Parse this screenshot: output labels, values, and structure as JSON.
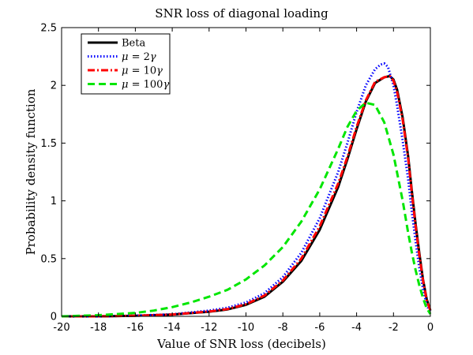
{
  "chart_data": {
    "type": "line",
    "title": "SNR loss of diagonal loading",
    "xlabel": "Value of SNR loss (decibels)",
    "ylabel": "Probability density function",
    "xlim": [
      -20,
      0
    ],
    "ylim": [
      0,
      2.5
    ],
    "xticks": [
      -20,
      -18,
      -16,
      -14,
      -12,
      -10,
      -8,
      -6,
      -4,
      -2,
      0
    ],
    "yticks": [
      0,
      0.5,
      1,
      1.5,
      2,
      2.5
    ],
    "xtick_labels": [
      "-20",
      "-18",
      "-16",
      "-14",
      "-12",
      "-10",
      "-8",
      "-6",
      "-4",
      "-2",
      "0"
    ],
    "ytick_labels": [
      "0",
      "0.5",
      "1",
      "1.5",
      "2",
      "2.5"
    ],
    "grid": false,
    "legend_position": "top-left",
    "series": [
      {
        "name": "Beta",
        "legend_parts": [
          "Beta"
        ],
        "color": "#000000",
        "style": "solid",
        "x": [
          -20,
          -18,
          -16,
          -14,
          -12,
          -11,
          -10,
          -9,
          -8,
          -7,
          -6,
          -5,
          -4.5,
          -4,
          -3.5,
          -3,
          -2.5,
          -2.2,
          -2,
          -1.8,
          -1.5,
          -1.2,
          -1,
          -0.8,
          -0.6,
          -0.4,
          -0.2,
          0
        ],
        "y": [
          0.0,
          0.0,
          0.005,
          0.015,
          0.04,
          0.06,
          0.1,
          0.17,
          0.3,
          0.48,
          0.75,
          1.12,
          1.36,
          1.62,
          1.86,
          2.02,
          2.07,
          2.08,
          2.05,
          1.96,
          1.72,
          1.38,
          1.08,
          0.8,
          0.55,
          0.32,
          0.15,
          0.05
        ]
      },
      {
        "name": "μ = 2γ",
        "legend_parts": [
          "μ",
          " = 2",
          "γ"
        ],
        "color": "#0000ff",
        "style": "dotted",
        "x": [
          -20,
          -18,
          -16,
          -14,
          -12,
          -11,
          -10,
          -9,
          -8,
          -7,
          -6,
          -5,
          -4.5,
          -4,
          -3.5,
          -3,
          -2.7,
          -2.5,
          -2.3,
          -2,
          -1.8,
          -1.5,
          -1.2,
          -1,
          -0.8,
          -0.6,
          -0.4,
          -0.2,
          0
        ],
        "y": [
          0.0,
          0.0,
          0.006,
          0.018,
          0.05,
          0.075,
          0.12,
          0.2,
          0.34,
          0.55,
          0.85,
          1.25,
          1.5,
          1.77,
          2.0,
          2.14,
          2.18,
          2.19,
          2.16,
          2.0,
          1.82,
          1.52,
          1.18,
          0.9,
          0.65,
          0.42,
          0.24,
          0.1,
          0.03
        ]
      },
      {
        "name": "μ = 10γ",
        "legend_parts": [
          "μ",
          " = 10",
          "γ"
        ],
        "color": "#ff0000",
        "style": "dashdot",
        "x": [
          -20,
          -18,
          -16,
          -14,
          -12,
          -11,
          -10,
          -9,
          -8,
          -7,
          -6,
          -5,
          -4.5,
          -4,
          -3.5,
          -3,
          -2.5,
          -2.2,
          -2,
          -1.8,
          -1.5,
          -1.2,
          -1,
          -0.8,
          -0.6,
          -0.4,
          -0.2,
          0
        ],
        "y": [
          0.0,
          0.0,
          0.005,
          0.016,
          0.042,
          0.063,
          0.105,
          0.18,
          0.31,
          0.5,
          0.78,
          1.15,
          1.38,
          1.64,
          1.87,
          2.03,
          2.07,
          2.08,
          2.04,
          1.94,
          1.7,
          1.36,
          1.06,
          0.78,
          0.53,
          0.31,
          0.14,
          0.05
        ]
      },
      {
        "name": "μ = 100γ",
        "legend_parts": [
          "μ",
          " = 100",
          "γ"
        ],
        "color": "#00e600",
        "style": "dashed",
        "x": [
          -20,
          -18,
          -16,
          -15,
          -14,
          -13,
          -12,
          -11,
          -10,
          -9,
          -8,
          -7,
          -6,
          -5,
          -4.5,
          -4,
          -3.5,
          -3,
          -2.5,
          -2,
          -1.5,
          -1.2,
          -1,
          -0.8,
          -0.6,
          -0.4,
          -0.2,
          0
        ],
        "y": [
          0.0,
          0.01,
          0.03,
          0.05,
          0.08,
          0.12,
          0.17,
          0.23,
          0.32,
          0.44,
          0.6,
          0.82,
          1.1,
          1.45,
          1.64,
          1.78,
          1.85,
          1.83,
          1.68,
          1.4,
          1.0,
          0.72,
          0.55,
          0.4,
          0.27,
          0.16,
          0.07,
          0.02
        ]
      }
    ]
  }
}
